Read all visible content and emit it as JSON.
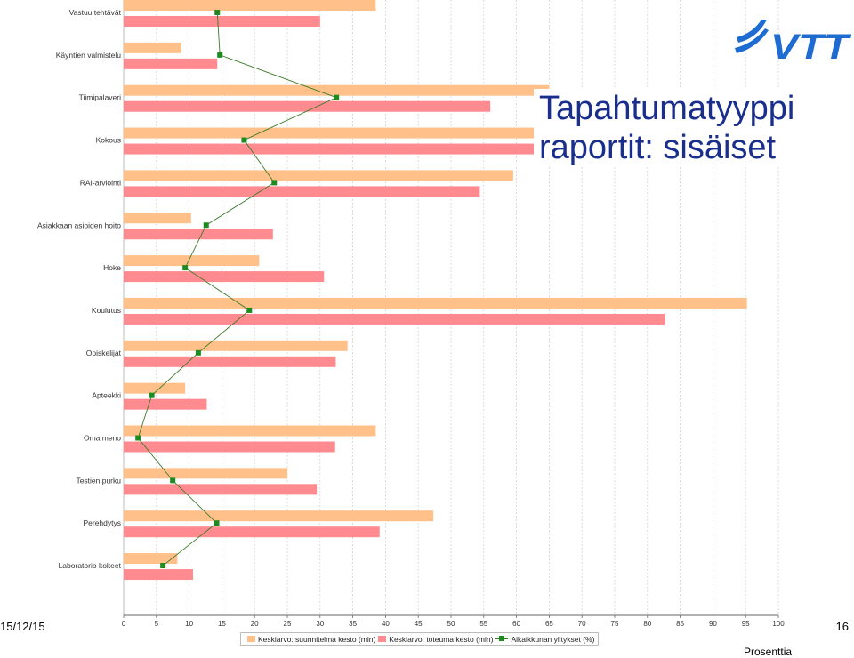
{
  "slide": {
    "title_line1": "Tapahtumatyyppi",
    "title_line2": "raportit: sisäiset",
    "date": "15/12/15",
    "page_number": "16",
    "logo_text": "VTT",
    "x_axis_unit_partial": "Prosenttia"
  },
  "colors": {
    "planned": "#ffc08a",
    "actual": "#ff8a8f",
    "overrun_line": "#3d7a2a",
    "overrun_marker": "#1f8a1f",
    "title": "#1a2e8c",
    "logo": "#1e6bd1"
  },
  "chart_data": {
    "type": "bar",
    "orientation": "horizontal",
    "categories": [
      "Vastuu tehtävät",
      "Käyntien valmistelu",
      "Tiimipalaveri",
      "Kokous",
      "RAI-arviointi",
      "Asiakkaan asioiden hoito",
      "Hoke",
      "Koulutus",
      "Opiskelijat",
      "Apteekki",
      "Oma meno",
      "Testien purku",
      "Perehdytys",
      "Laboratorio kokeet"
    ],
    "series": [
      {
        "name": "Keskiarvo: suunnitelma kesto (min)",
        "values": [
          38.5,
          8.8,
          65,
          65,
          59.5,
          10.3,
          20.7,
          95.2,
          34.2,
          9.4,
          38.5,
          25,
          47.3,
          8.2
        ]
      },
      {
        "name": "Keskiarvo: toteuma kesto (min)",
        "values": [
          30,
          14.3,
          56,
          63,
          54.4,
          22.8,
          30.6,
          82.7,
          32.4,
          12.7,
          32.3,
          29.5,
          39.1,
          10.6
        ]
      },
      {
        "name": "Aikaikkunan ylitykset (%)",
        "values": [
          14.3,
          14.7,
          32.5,
          18.4,
          23,
          12.6,
          9.4,
          19.2,
          11.4,
          4.3,
          2.2,
          7.5,
          14.2,
          6
        ]
      }
    ],
    "xlim": [
      0,
      100
    ],
    "xticks": [
      0,
      5,
      10,
      15,
      20,
      25,
      30,
      35,
      40,
      45,
      50,
      55,
      60,
      65,
      70,
      75,
      80,
      85,
      90,
      95,
      100
    ],
    "grid": true,
    "legend_position": "bottom"
  }
}
